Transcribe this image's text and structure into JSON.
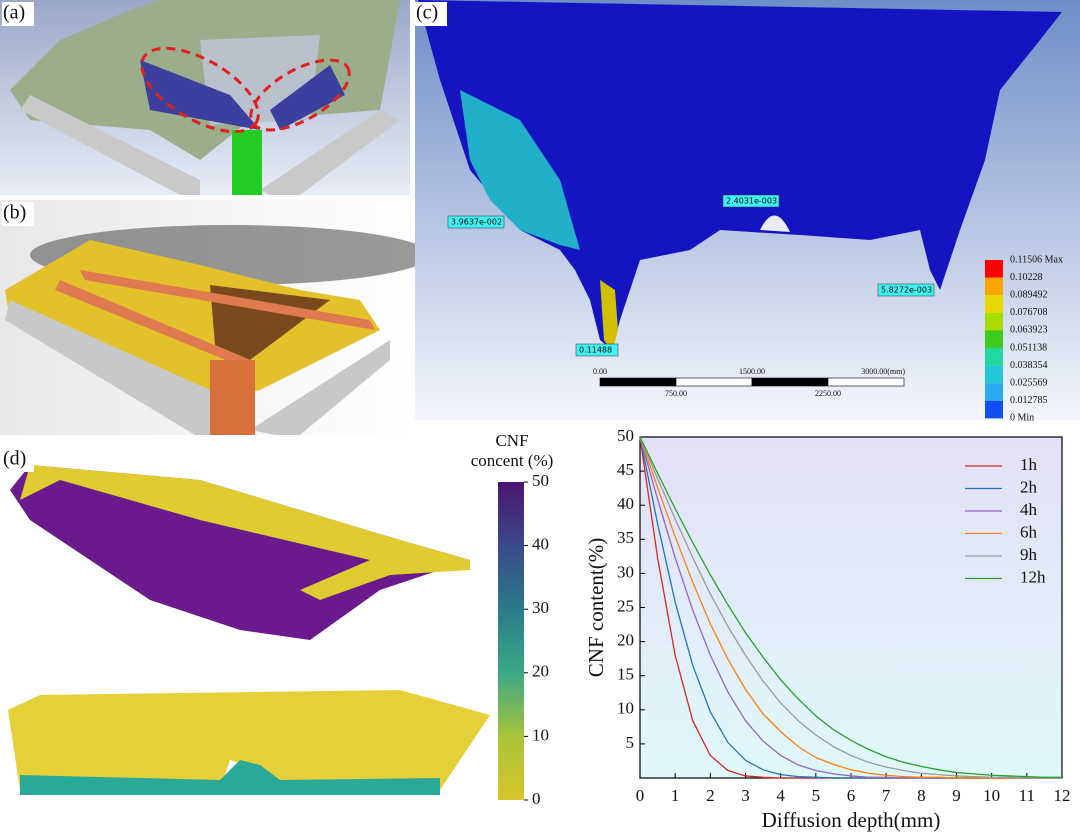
{
  "panels": {
    "a": "(a)",
    "b": "(b)",
    "c": "(c)",
    "d": "(d)"
  },
  "panel_c": {
    "annotations": [
      "3.9637e-002",
      "2.4031e-003",
      "5.8272e-003",
      "0.11488"
    ],
    "legend_labels": [
      "0.11506 Max",
      "0.10228",
      "0.089492",
      "0.076708",
      "0.063923",
      "0.051138",
      "0.038354",
      "0.025569",
      "0.012785",
      "0 Min"
    ],
    "legend_colors": [
      "#ff0000",
      "#ffa500",
      "#e8d800",
      "#a8dc00",
      "#3ccc1e",
      "#20d8a0",
      "#20c8d8",
      "#2aa8f0",
      "#1050f0"
    ],
    "scale_top": [
      "0.00",
      "1500.00",
      "3000.00(mm)"
    ],
    "scale_bottom": [
      "750.00",
      "2250.00"
    ]
  },
  "panel_d": {
    "colorbar_title": [
      "CNF",
      "concent (%)"
    ],
    "colorbar_range": [
      0,
      50
    ],
    "colorbar_ticks": [
      0,
      10,
      20,
      30,
      40,
      50
    ]
  },
  "chart_data": {
    "type": "line",
    "xlabel": "Diffusion depth(mm)",
    "ylabel": "CNF content(%)",
    "x": [
      0,
      0.5,
      1,
      1.5,
      2,
      2.5,
      3,
      3.5,
      4,
      4.5,
      5,
      5.5,
      6,
      6.5,
      7,
      7.5,
      8,
      8.5,
      9,
      9.5,
      10,
      10.5,
      11,
      11.5,
      12
    ],
    "xlim": [
      0,
      12
    ],
    "xticks": [
      0,
      1,
      2,
      3,
      4,
      5,
      6,
      7,
      8,
      9,
      10,
      11,
      12
    ],
    "ylim": [
      0,
      50
    ],
    "yticks": [
      5,
      10,
      15,
      20,
      25,
      30,
      35,
      40,
      45,
      50
    ],
    "series": [
      {
        "name": "1h",
        "color": "#d62728",
        "values": [
          50,
          32.3,
          18.0,
          8.4,
          3.3,
          1.1,
          0.3,
          0.1,
          0,
          0,
          0,
          0,
          0,
          0,
          0,
          0,
          0,
          0,
          0,
          0,
          0,
          0,
          0,
          0,
          0
        ]
      },
      {
        "name": "2h",
        "color": "#1f77b4",
        "values": [
          50,
          37.3,
          25.8,
          16.5,
          9.7,
          5.2,
          2.6,
          1.2,
          0.5,
          0.2,
          0.1,
          0,
          0,
          0,
          0,
          0,
          0,
          0,
          0,
          0,
          0,
          0,
          0,
          0,
          0
        ]
      },
      {
        "name": "4h",
        "color": "#9467bd",
        "values": [
          50,
          40.9,
          32.3,
          24.6,
          18.0,
          12.6,
          8.4,
          5.4,
          3.3,
          1.9,
          1.1,
          0.6,
          0.3,
          0.1,
          0.1,
          0,
          0,
          0,
          0,
          0,
          0,
          0,
          0,
          0,
          0
        ]
      },
      {
        "name": "6h",
        "color": "#ff7f0e",
        "values": [
          50,
          42.6,
          35.4,
          28.7,
          22.6,
          17.4,
          13.0,
          9.4,
          6.8,
          4.6,
          3.0,
          2.0,
          1.2,
          0.7,
          0.4,
          0.2,
          0.1,
          0.1,
          0,
          0,
          0,
          0,
          0,
          0,
          0
        ]
      },
      {
        "name": "9h",
        "color": "#9a9a9a",
        "values": [
          50,
          43.9,
          38.0,
          32.3,
          27.0,
          22.2,
          18.0,
          14.2,
          11.0,
          8.4,
          6.3,
          4.6,
          3.3,
          2.3,
          1.6,
          1.1,
          0.7,
          0.5,
          0.3,
          0.2,
          0.1,
          0.1,
          0,
          0,
          0
        ]
      },
      {
        "name": "12h",
        "color": "#2ca02c",
        "values": [
          50,
          44.7,
          39.5,
          34.5,
          29.8,
          25.4,
          21.3,
          17.7,
          14.4,
          11.6,
          9.1,
          7.1,
          5.5,
          4.2,
          3.1,
          2.3,
          1.7,
          1.2,
          0.8,
          0.6,
          0.4,
          0.3,
          0.2,
          0.1,
          0.1
        ]
      }
    ]
  }
}
